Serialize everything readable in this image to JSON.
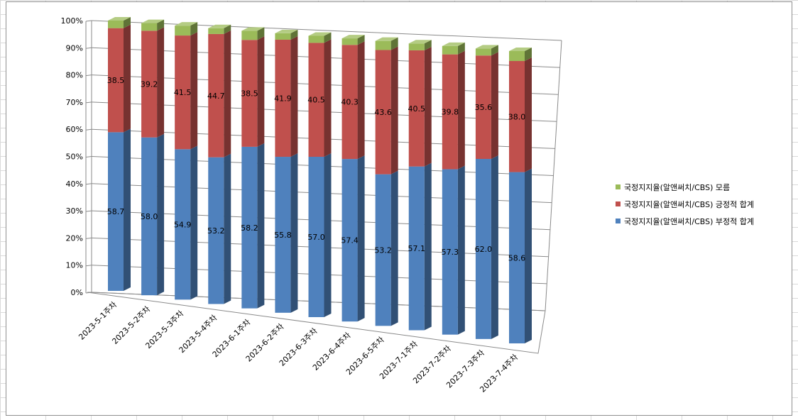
{
  "chart_data": {
    "type": "bar",
    "stacked": "percent",
    "categories": [
      "2023-5-1주차",
      "2023-5-2주차",
      "2023-5-3주차",
      "2023-5-4주차",
      "2023-6-1주차",
      "2023-6-2주차",
      "2023-6-3주차",
      "2023-6-4주차",
      "2023-6-5주차",
      "2023-7-1주차",
      "2023-7-2주차",
      "2023-7-3주차",
      "2023-7-4주차"
    ],
    "series": [
      {
        "name": "국정지지율(알앤써치/CBS) 부정적 합계",
        "color": "#4f81bd",
        "values": [
          58.7,
          58.0,
          54.9,
          53.2,
          58.2,
          55.8,
          57.0,
          57.4,
          53.2,
          57.1,
          57.3,
          62.0,
          58.6
        ]
      },
      {
        "name": "국정지지율(알앤써치/CBS) 긍정적 합계",
        "color": "#c0504d",
        "values": [
          38.5,
          39.2,
          41.5,
          44.7,
          38.5,
          41.9,
          40.5,
          40.3,
          43.6,
          40.5,
          39.8,
          35.6,
          38.0
        ]
      },
      {
        "name": "국정지지율(알앤써치/CBS) 모름",
        "color": "#9bbb59",
        "values": [
          2.8,
          2.8,
          3.6,
          2.1,
          3.3,
          2.3,
          2.5,
          2.3,
          3.2,
          2.4,
          2.9,
          2.4,
          3.4
        ]
      }
    ],
    "y_ticks": [
      "0%",
      "10%",
      "20%",
      "30%",
      "40%",
      "50%",
      "60%",
      "70%",
      "80%",
      "90%",
      "100%"
    ],
    "ylim": [
      0,
      100
    ],
    "grid": true,
    "legend_position": "right",
    "title": "",
    "xlabel": "",
    "ylabel": ""
  }
}
